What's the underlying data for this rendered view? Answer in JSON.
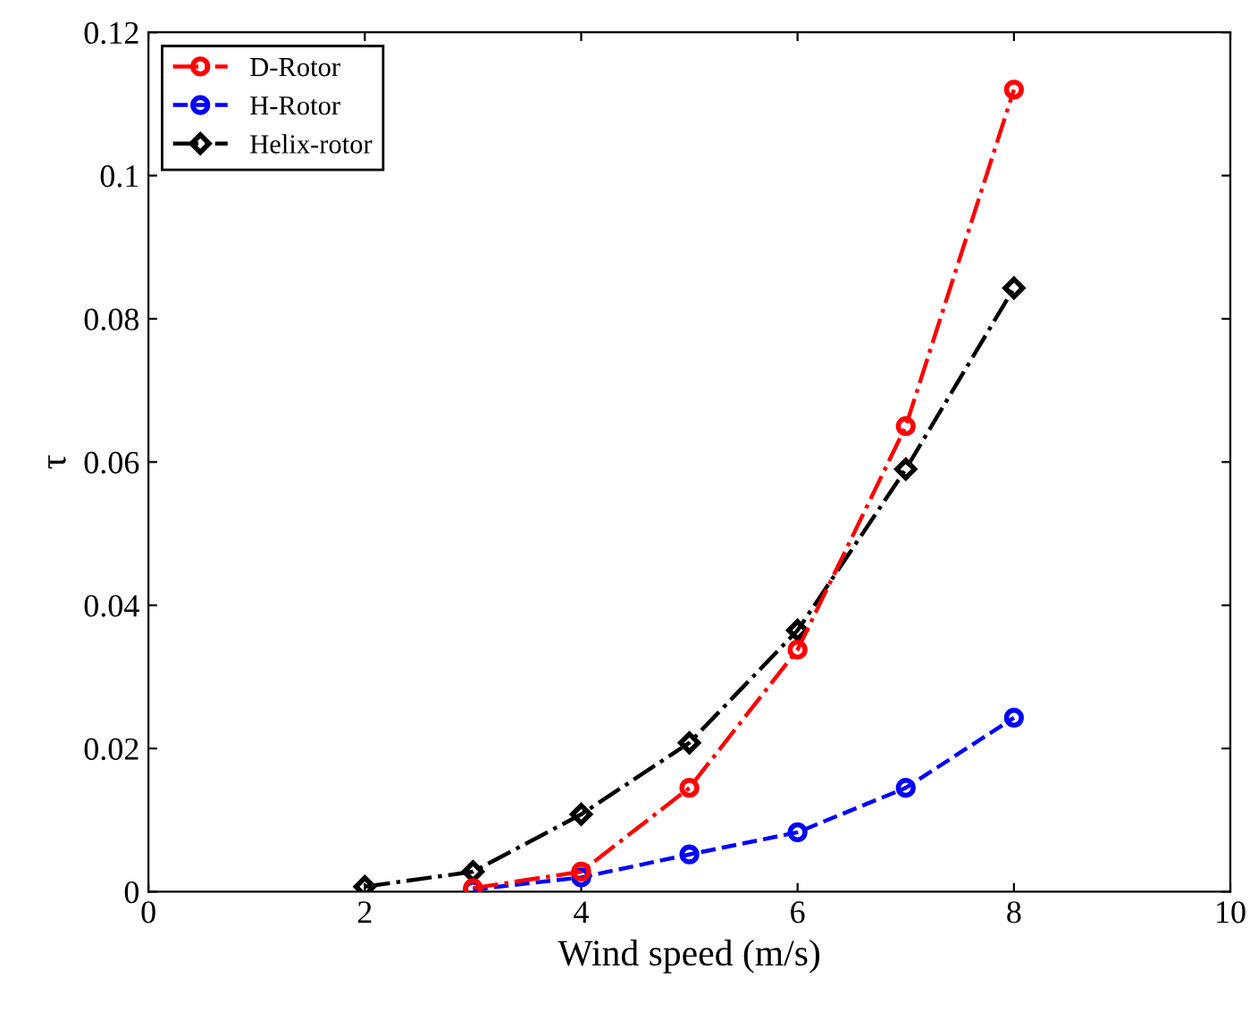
{
  "chart_data": {
    "type": "line",
    "xlabel": "Wind speed (m/s)",
    "ylabel": "τ",
    "xlim": [
      0,
      10
    ],
    "xticks": [
      0,
      2,
      4,
      6,
      8,
      10
    ],
    "ylim": [
      0,
      0.12
    ],
    "yticks": [
      0,
      0.02,
      0.04,
      0.06,
      0.08,
      0.1,
      0.12
    ],
    "grid": false,
    "legend": "top left",
    "series": [
      {
        "name": "D-Rotor",
        "color": "#ff0000",
        "marker": "circle",
        "line_style": "dashdot",
        "x": [
          3,
          4,
          5,
          6,
          7,
          8
        ],
        "values": [
          0.0005,
          0.0028,
          0.0145,
          0.0338,
          0.065,
          0.112
        ]
      },
      {
        "name": "H-Rotor",
        "color": "#0000ff",
        "marker": "circle",
        "line_style": "dashed",
        "x": [
          3,
          4,
          5,
          6,
          7,
          8
        ],
        "values": [
          0.0003,
          0.002,
          0.0052,
          0.0083,
          0.0145,
          0.0243
        ]
      },
      {
        "name": "Helix-rotor",
        "color": "#000000",
        "marker": "diamond",
        "line_style": "dashdot",
        "x": [
          2,
          3,
          4,
          5,
          6,
          7,
          8
        ],
        "values": [
          0.0007,
          0.0028,
          0.0108,
          0.0208,
          0.0365,
          0.059,
          0.0843
        ]
      }
    ]
  }
}
